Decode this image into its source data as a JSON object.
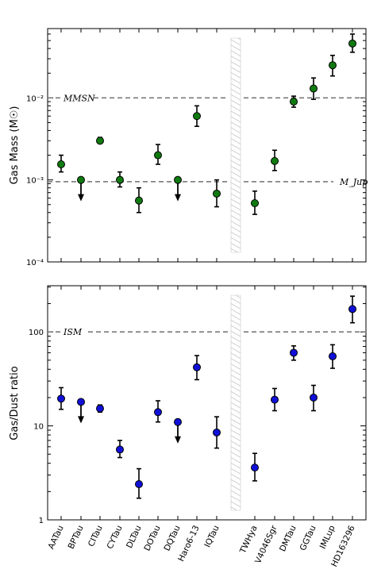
{
  "chart_data": [
    {
      "type": "scatter",
      "title": "",
      "xlabel": "",
      "ylabel": "Gas Mass (M☉)",
      "yscale": "log",
      "ylim": [
        0.0001,
        0.07
      ],
      "y_ticks": [
        {
          "value": 0.0001,
          "label": "10⁻⁴"
        },
        {
          "value": 0.001,
          "label": "10⁻³"
        },
        {
          "value": 0.01,
          "label": "10⁻²"
        }
      ],
      "marker_color": "#107a10",
      "reference_lines": [
        {
          "value": 0.01,
          "label": "MMSN",
          "label_side": "left"
        },
        {
          "value": 0.00095,
          "label": "M_Jup",
          "label_side": "right"
        }
      ],
      "categories": [
        "AATau",
        "BPTau",
        "CITau",
        "CYTau",
        "DLTau",
        "DOTau",
        "DQTau",
        "Haro6-13",
        "IQTau",
        "TWHya",
        "V4046Sgr",
        "DMTau",
        "GGTau",
        "IMLup",
        "HD163296"
      ],
      "points": [
        {
          "name": "AATau",
          "y": 0.00155,
          "low": 0.00125,
          "high": 0.002,
          "upper_limit": false
        },
        {
          "name": "BPTau",
          "y": 0.001,
          "upper_limit": true
        },
        {
          "name": "CITau",
          "y": 0.003,
          "low": 0.0028,
          "high": 0.0033,
          "upper_limit": false
        },
        {
          "name": "CYTau",
          "y": 0.001,
          "low": 0.00082,
          "high": 0.00125,
          "upper_limit": false
        },
        {
          "name": "DLTau",
          "y": 0.00056,
          "low": 0.0004,
          "high": 0.0008,
          "upper_limit": false
        },
        {
          "name": "DOTau",
          "y": 0.002,
          "low": 0.00155,
          "high": 0.0027,
          "upper_limit": false
        },
        {
          "name": "DQTau",
          "y": 0.001,
          "upper_limit": true
        },
        {
          "name": "Haro6-13",
          "y": 0.006,
          "low": 0.0045,
          "high": 0.008,
          "upper_limit": false
        },
        {
          "name": "IQTau",
          "y": 0.00068,
          "low": 0.00047,
          "high": 0.001,
          "upper_limit": false
        },
        {
          "name": "TWHya",
          "y": 0.00052,
          "low": 0.00038,
          "high": 0.00073,
          "upper_limit": false
        },
        {
          "name": "V4046Sgr",
          "y": 0.0017,
          "low": 0.0013,
          "high": 0.0023,
          "upper_limit": false
        },
        {
          "name": "DMTau",
          "y": 0.009,
          "low": 0.0077,
          "high": 0.0105,
          "upper_limit": false
        },
        {
          "name": "GGTau",
          "y": 0.013,
          "low": 0.0096,
          "high": 0.0175,
          "upper_limit": false
        },
        {
          "name": "IMLup",
          "y": 0.025,
          "low": 0.0185,
          "high": 0.033,
          "upper_limit": false
        },
        {
          "name": "HD163296",
          "y": 0.046,
          "low": 0.036,
          "high": 0.06,
          "upper_limit": false
        }
      ]
    },
    {
      "type": "scatter",
      "title": "",
      "xlabel": "",
      "ylabel": "Gas/Dust ratio",
      "yscale": "log",
      "ylim": [
        1,
        310
      ],
      "y_ticks": [
        {
          "value": 1,
          "label": "1"
        },
        {
          "value": 10,
          "label": "10"
        },
        {
          "value": 100,
          "label": "100"
        }
      ],
      "marker_color": "#1010d8",
      "reference_lines": [
        {
          "value": 100,
          "label": "ISM",
          "label_side": "left"
        }
      ],
      "categories": [
        "AATau",
        "BPTau",
        "CITau",
        "CYTau",
        "DLTau",
        "DOTau",
        "DQTau",
        "Haro6-13",
        "IQTau",
        "TWHya",
        "V4046Sgr",
        "DMTau",
        "GGTau",
        "IMLup",
        "HD163296"
      ],
      "points": [
        {
          "name": "AATau",
          "y": 19.5,
          "low": 15,
          "high": 25.5,
          "upper_limit": false
        },
        {
          "name": "BPTau",
          "y": 18,
          "upper_limit": true
        },
        {
          "name": "CITau",
          "y": 15.3,
          "low": 14,
          "high": 16.7,
          "upper_limit": false
        },
        {
          "name": "CYTau",
          "y": 5.6,
          "low": 4.6,
          "high": 7,
          "upper_limit": false
        },
        {
          "name": "DLTau",
          "y": 2.4,
          "low": 1.7,
          "high": 3.5,
          "upper_limit": false
        },
        {
          "name": "DOTau",
          "y": 14,
          "low": 11,
          "high": 18.5,
          "upper_limit": false
        },
        {
          "name": "DQTau",
          "y": 11,
          "upper_limit": true
        },
        {
          "name": "Haro6-13",
          "y": 42,
          "low": 31,
          "high": 56,
          "upper_limit": false
        },
        {
          "name": "IQTau",
          "y": 8.5,
          "low": 5.8,
          "high": 12.5,
          "upper_limit": false
        },
        {
          "name": "TWHya",
          "y": 3.6,
          "low": 2.6,
          "high": 5.1,
          "upper_limit": false
        },
        {
          "name": "V4046Sgr",
          "y": 19,
          "low": 14.5,
          "high": 25,
          "upper_limit": false
        },
        {
          "name": "DMTau",
          "y": 60,
          "low": 50,
          "high": 71,
          "upper_limit": false
        },
        {
          "name": "GGTau",
          "y": 20,
          "low": 14.5,
          "high": 27,
          "upper_limit": false
        },
        {
          "name": "IMLup",
          "y": 55,
          "low": 41,
          "high": 73,
          "upper_limit": false
        },
        {
          "name": "HD163296",
          "y": 175,
          "low": 125,
          "high": 240,
          "upper_limit": false
        }
      ]
    }
  ]
}
